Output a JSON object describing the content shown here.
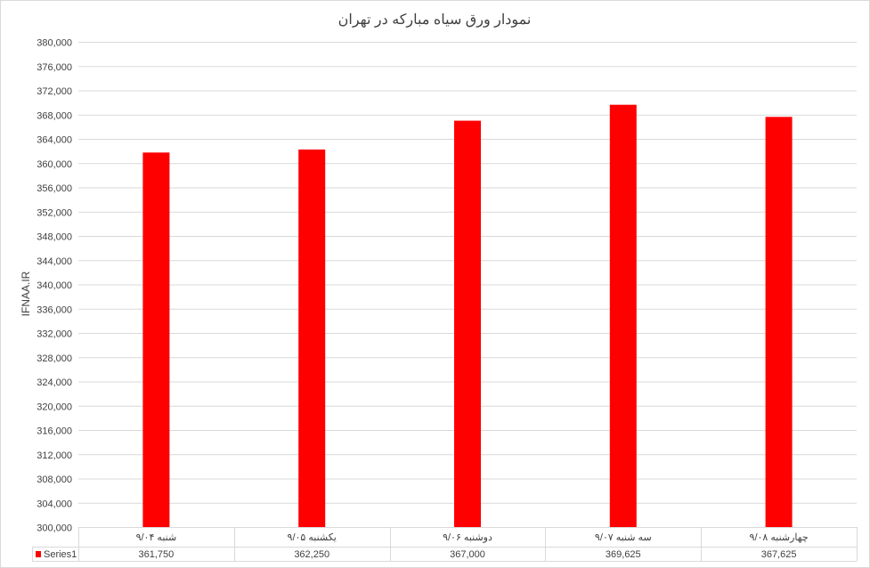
{
  "chart_data": {
    "type": "bar",
    "title": "نمودار ورق سیاه مبارکه در تهران",
    "ylabel": "IFNAA.IR",
    "xlabel": "",
    "categories": [
      "شنبه ۹/۰۴",
      "یکشنبه ۹/۰۵",
      "دوشنبه ۹/۰۶",
      "سه شنبه ۹/۰۷",
      "چهارشنبه ۹/۰۸"
    ],
    "series": [
      {
        "name": "Series1",
        "values": [
          361750,
          362250,
          367000,
          369625,
          367625
        ],
        "color": "#ff0000"
      }
    ],
    "value_labels": [
      "361,750",
      "362,250",
      "367,000",
      "369,625",
      "367,625"
    ],
    "ylim": [
      300000,
      380000
    ],
    "ytick_step": 4000,
    "grid": true,
    "legend": "data-table"
  }
}
